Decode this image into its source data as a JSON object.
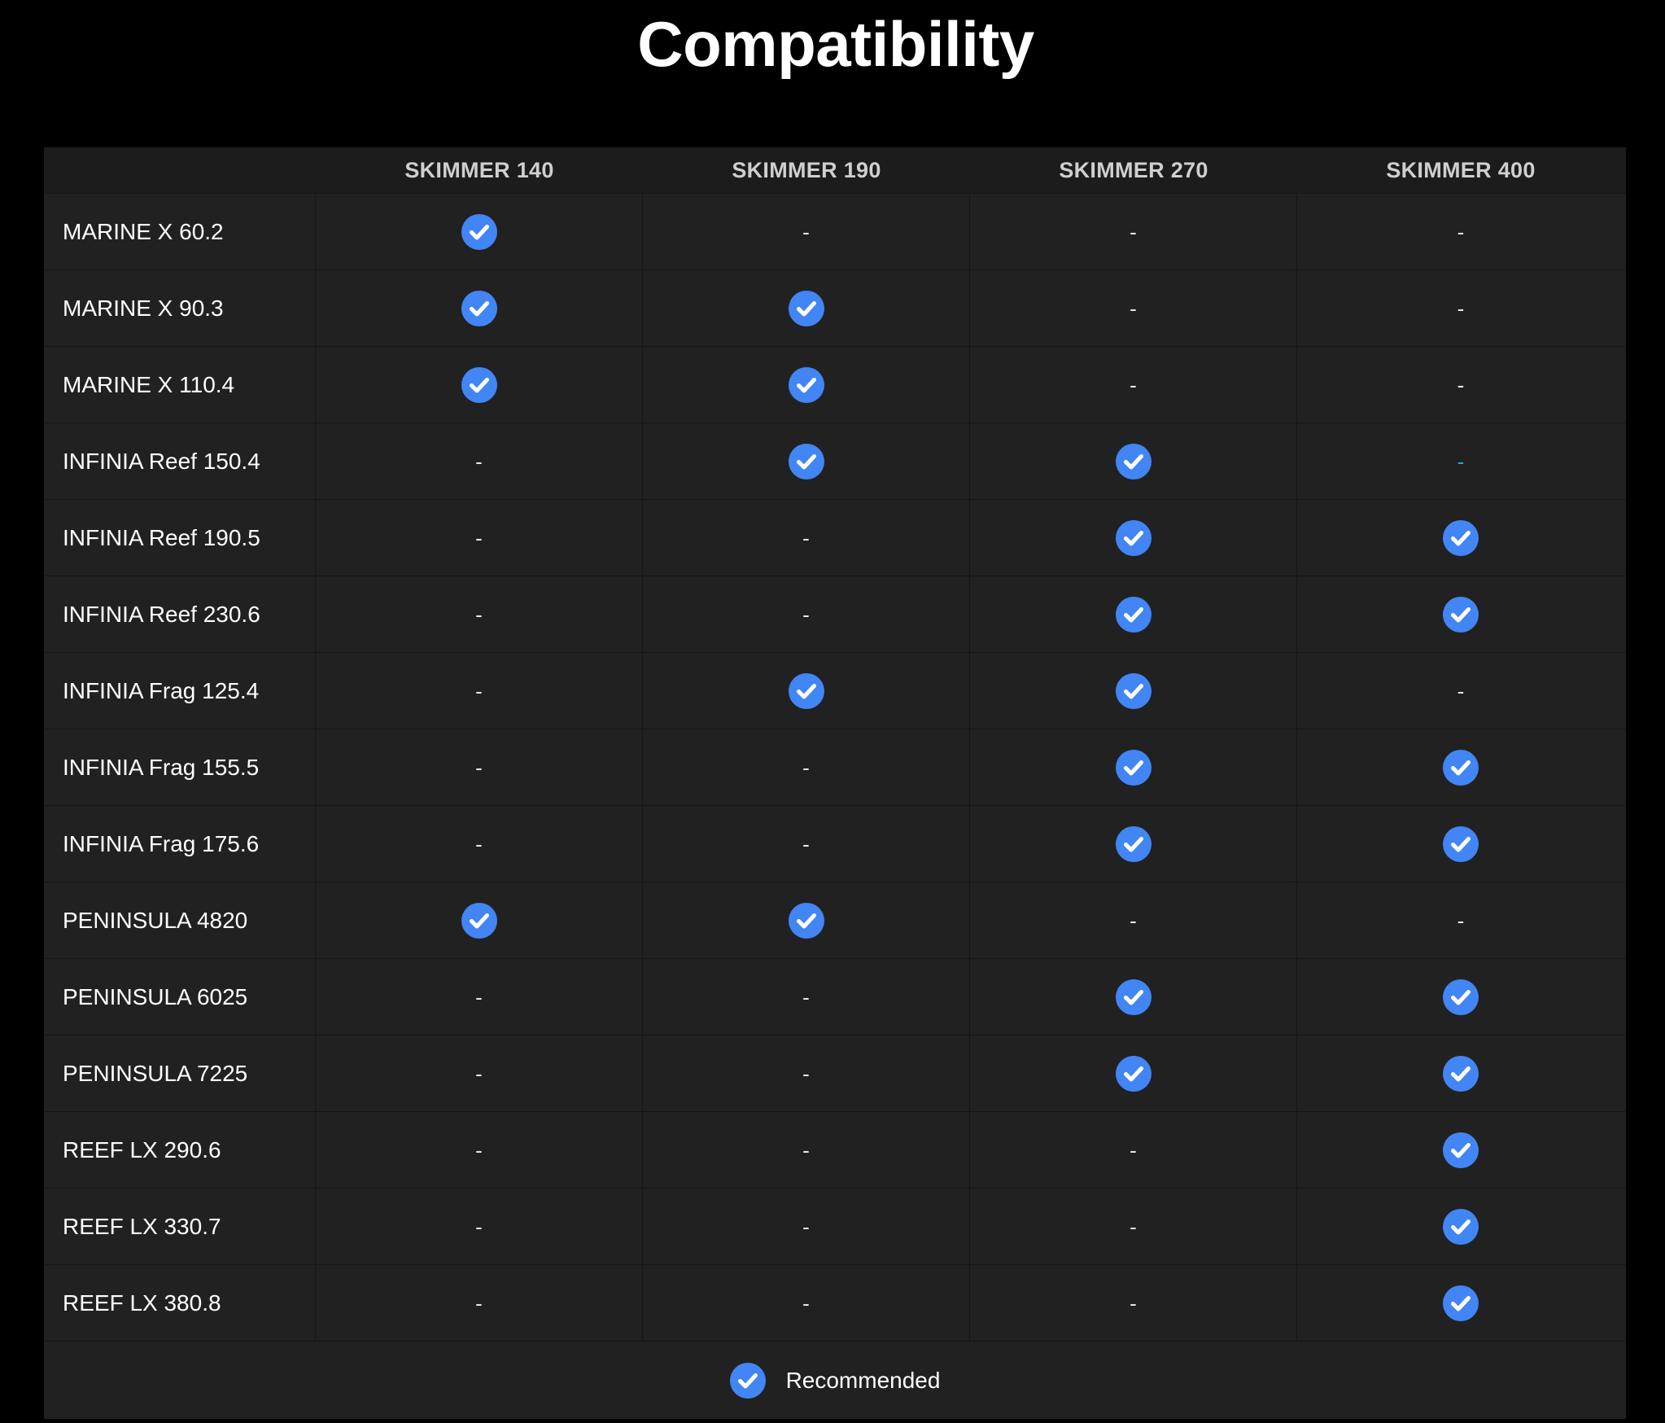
{
  "title": "Compatibility",
  "colors": {
    "background": "#000000",
    "table_background": "#212121",
    "header_text": "#cfcfcf",
    "check_fill": "#4285f4",
    "check_mark": "#ffffff",
    "accent_dash": "#2aa6d8"
  },
  "columns": [
    "SKIMMER 140",
    "SKIMMER 190",
    "SKIMMER 270",
    "SKIMMER 400"
  ],
  "rows": [
    {
      "label": "MARINE X 60.2",
      "cells": [
        true,
        false,
        false,
        false
      ]
    },
    {
      "label": "MARINE X 90.3",
      "cells": [
        true,
        true,
        false,
        false
      ]
    },
    {
      "label": "MARINE X 110.4",
      "cells": [
        true,
        true,
        false,
        false
      ]
    },
    {
      "label": "INFINIA Reef 150.4",
      "cells": [
        false,
        true,
        true,
        false
      ]
    },
    {
      "label": "INFINIA Reef 190.5",
      "cells": [
        false,
        false,
        true,
        true
      ]
    },
    {
      "label": "INFINIA Reef 230.6",
      "cells": [
        false,
        false,
        true,
        true
      ]
    },
    {
      "label": "INFINIA Frag 125.4",
      "cells": [
        false,
        true,
        true,
        false
      ]
    },
    {
      "label": "INFINIA Frag 155.5",
      "cells": [
        false,
        false,
        true,
        true
      ]
    },
    {
      "label": "INFINIA Frag 175.6",
      "cells": [
        false,
        false,
        true,
        true
      ]
    },
    {
      "label": "PENINSULA 4820",
      "cells": [
        true,
        true,
        false,
        false
      ]
    },
    {
      "label": "PENINSULA 6025",
      "cells": [
        false,
        false,
        true,
        true
      ]
    },
    {
      "label": "PENINSULA 7225",
      "cells": [
        false,
        false,
        true,
        true
      ]
    },
    {
      "label": "REEF LX 290.6",
      "cells": [
        false,
        false,
        false,
        true
      ]
    },
    {
      "label": "REEF LX 330.7",
      "cells": [
        false,
        false,
        false,
        true
      ]
    },
    {
      "label": "REEF LX 380.8",
      "cells": [
        false,
        false,
        false,
        true
      ]
    }
  ],
  "accent_dash_cells": [
    {
      "row": 3,
      "col": 3
    }
  ],
  "dash_symbol": "-",
  "legend": {
    "icon": "check-circle-icon",
    "label": "Recommended"
  }
}
